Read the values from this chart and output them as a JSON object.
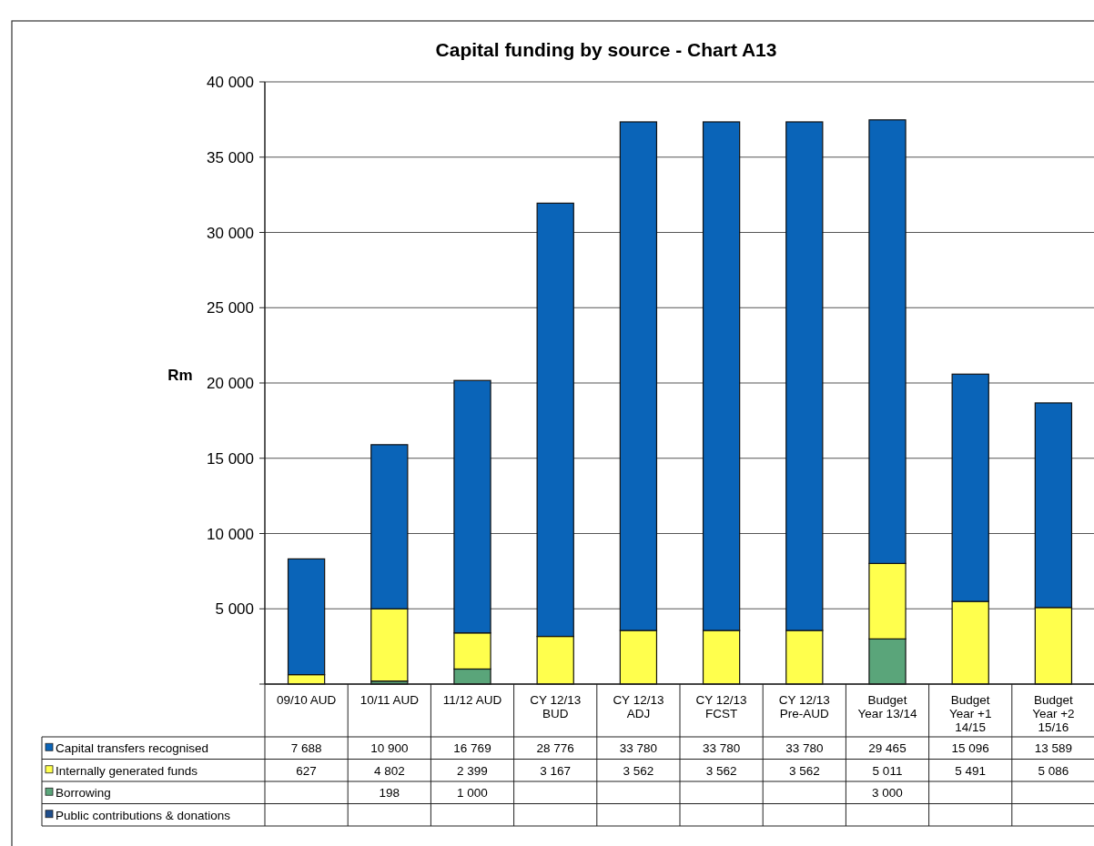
{
  "chart_data": {
    "type": "bar",
    "title": "Capital funding by source - Chart A13",
    "ylabel": "Rm",
    "categories": [
      "09/10 AUD",
      "10/11 AUD",
      "11/12 AUD",
      "CY 12/13 BUD",
      "CY 12/13 ADJ",
      "CY 12/13 FCST",
      "CY 12/13 Pre-AUD",
      "Budget Year 13/14",
      "Budget Year +1 14/15",
      "Budget Year +2 15/16"
    ],
    "stacked": true,
    "series": [
      {
        "name": "Public contributions & donations",
        "color": "#1f4e8c",
        "values": [
          null,
          null,
          null,
          null,
          null,
          null,
          null,
          null,
          null,
          null
        ],
        "value_labels": [
          null,
          null,
          null,
          null,
          null,
          null,
          null,
          null,
          null,
          null
        ]
      },
      {
        "name": "Borrowing",
        "color": "#5aa57a",
        "values": [
          null,
          198,
          1000,
          null,
          null,
          null,
          null,
          3000,
          null,
          null
        ],
        "value_labels": [
          null,
          "198",
          "1 000",
          null,
          null,
          null,
          null,
          "3 000",
          null,
          null
        ]
      },
      {
        "name": "Internally generated funds",
        "color": "#ffff4d",
        "values": [
          627,
          4802,
          2399,
          3167,
          3562,
          3562,
          3562,
          5011,
          5491,
          5086
        ],
        "value_labels": [
          "627",
          "4 802",
          "2 399",
          "3 167",
          "3 562",
          "3 562",
          "3 562",
          "5 011",
          "5 491",
          "5 086"
        ]
      },
      {
        "name": "Capital transfers recognised",
        "color": "#0a64b8",
        "values": [
          7688,
          10900,
          16769,
          28776,
          33780,
          33780,
          33780,
          29465,
          15096,
          13589
        ],
        "value_labels": [
          "7 688",
          "10 900",
          "16 769",
          "28 776",
          "33 780",
          "33 780",
          "33 780",
          "29 465",
          "15 096",
          "13 589"
        ]
      }
    ],
    "ylim": [
      0,
      40000
    ],
    "yticks": [
      {
        "value": 0,
        "label": null
      },
      {
        "value": 5000,
        "label": "5 000"
      },
      {
        "value": 10000,
        "label": "10 000"
      },
      {
        "value": 15000,
        "label": "15 000"
      },
      {
        "value": 20000,
        "label": "20 000"
      },
      {
        "value": 25000,
        "label": "25 000"
      },
      {
        "value": 30000,
        "label": "30 000"
      },
      {
        "value": 35000,
        "label": "35 000"
      },
      {
        "value": 40000,
        "label": "40 000"
      }
    ],
    "grid": "y",
    "legend": "bottom"
  }
}
